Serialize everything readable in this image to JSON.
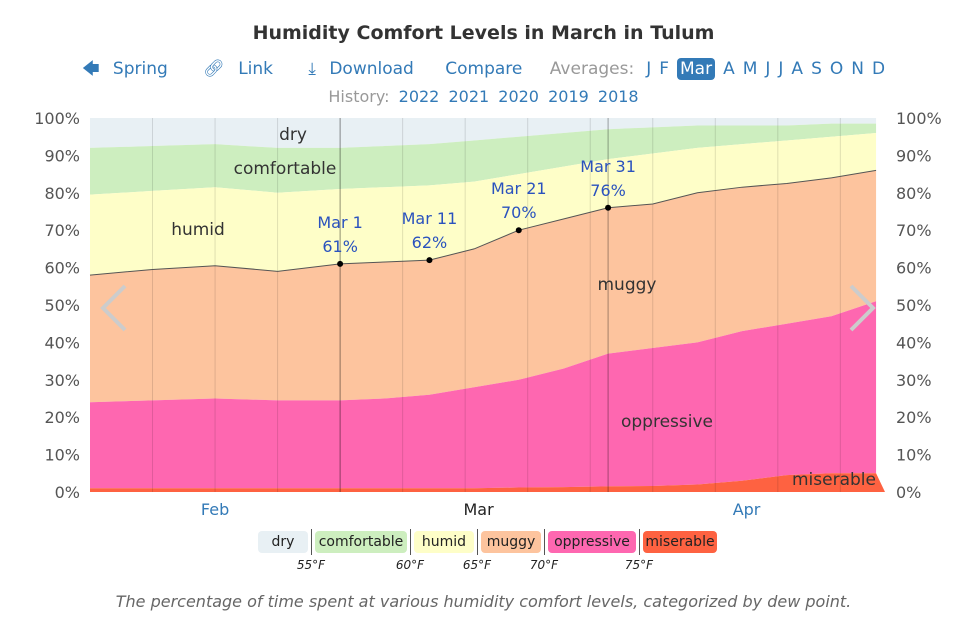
{
  "title": "Humidity Comfort Levels in March in Tulum",
  "nav": {
    "back": "Spring",
    "link": "Link",
    "download": "Download",
    "compare": "Compare",
    "averages_label": "Averages:",
    "months": [
      "J",
      "F",
      "Mar",
      "A",
      "M",
      "J",
      "J",
      "A",
      "S",
      "O",
      "N",
      "D"
    ],
    "selected_month": "Mar"
  },
  "history": {
    "label": "History:",
    "years": [
      "2022",
      "2021",
      "2020",
      "2019",
      "2018"
    ]
  },
  "caption": "The percentage of time spent at various humidity comfort levels, categorized by dew point.",
  "legend": {
    "items": [
      {
        "label": "dry",
        "color": "#e8f0f4"
      },
      {
        "label": "comfortable",
        "color": "#cdeebf"
      },
      {
        "label": "humid",
        "color": "#fefec8"
      },
      {
        "label": "muggy",
        "color": "#fdc49e"
      },
      {
        "label": "oppressive",
        "color": "#fe67b0"
      },
      {
        "label": "miserable",
        "color": "#fe6241"
      }
    ],
    "thresholds": [
      "55°F",
      "60°F",
      "65°F",
      "70°F",
      "75°F"
    ]
  },
  "chart_data": {
    "type": "area",
    "stacked": true,
    "x": [
      "Feb 1",
      "Feb 8",
      "Feb 15",
      "Feb 22",
      "Mar 1",
      "Mar 6",
      "Mar 11",
      "Mar 16",
      "Mar 21",
      "Mar 26",
      "Mar 31",
      "Apr 5",
      "Apr 10",
      "Apr 15",
      "Apr 20",
      "Apr 25",
      "Apr 30"
    ],
    "x_tick_labels": [
      "Feb",
      "Mar",
      "Apr"
    ],
    "y_ticks": [
      "0%",
      "10%",
      "20%",
      "30%",
      "40%",
      "50%",
      "60%",
      "70%",
      "80%",
      "90%",
      "100%"
    ],
    "ylim": [
      0,
      100
    ],
    "cumulative_upper_bounds": {
      "miserable": [
        1,
        1,
        1,
        1,
        1,
        1,
        1,
        1,
        1.2,
        1.3,
        1.5,
        1.6,
        2,
        3,
        4.5,
        5,
        5
      ],
      "oppressive": [
        24,
        24.5,
        25,
        24.5,
        24.5,
        25,
        26,
        28,
        30,
        33,
        37,
        38.5,
        40,
        43,
        45,
        47,
        51
      ],
      "muggy": [
        58,
        59.5,
        60.5,
        59,
        61,
        61.5,
        62,
        65,
        70,
        73,
        76,
        77,
        80,
        81.5,
        82.5,
        84,
        86
      ],
      "humid": [
        79.5,
        80.5,
        81.5,
        80,
        81,
        81.5,
        82,
        83,
        85,
        87,
        89,
        90.5,
        92,
        93,
        94,
        95,
        96
      ],
      "comfortable": [
        92,
        92.5,
        93,
        92,
        92,
        92.5,
        93,
        94,
        95,
        96,
        97,
        97.5,
        98,
        98,
        98,
        98.5,
        98.5
      ],
      "dry": [
        100,
        100,
        100,
        100,
        100,
        100,
        100,
        100,
        100,
        100,
        100,
        100,
        100,
        100,
        100,
        100,
        100
      ]
    },
    "series_labels": [
      "dry",
      "comfortable",
      "humid",
      "muggy",
      "oppressive",
      "miserable"
    ],
    "annotations": [
      {
        "date": "Mar 1",
        "label": "Mar 1",
        "value_label": "61%",
        "value": 61
      },
      {
        "date": "Mar 11",
        "label": "Mar 11",
        "value_label": "62%",
        "value": 62
      },
      {
        "date": "Mar 21",
        "label": "Mar 21",
        "value_label": "70%",
        "value": 70
      },
      {
        "date": "Mar 31",
        "label": "Mar 31",
        "value_label": "76%",
        "value": 76
      }
    ],
    "highlight_range": [
      "Mar 1",
      "Mar 31"
    ]
  }
}
